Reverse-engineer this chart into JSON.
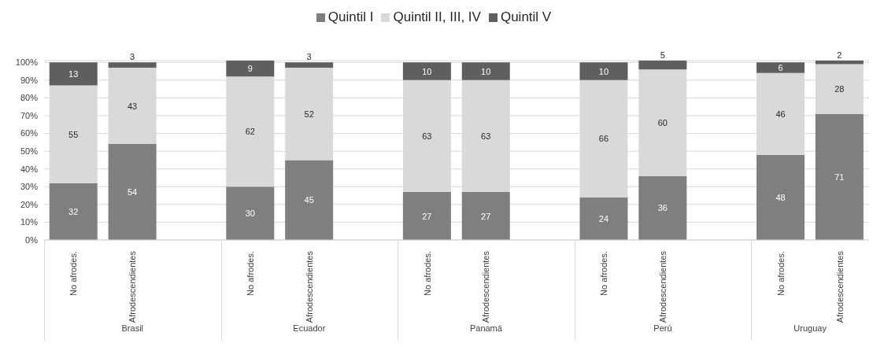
{
  "chart_data": {
    "type": "bar",
    "stacked": true,
    "categories": [
      "No afrodes.",
      "Afrodescendientes",
      null,
      "No afrodes.",
      "Afrodescendientes",
      null,
      "No afrodes.",
      "Afrodescendientes",
      null,
      "No afrodes.",
      "Afrodescendientes",
      null,
      "No afrodes.",
      "Afrodescendientes"
    ],
    "series": [
      {
        "name": "Quintil I",
        "color": "#7f7f7f",
        "values": [
          32,
          54,
          null,
          30,
          45,
          null,
          27,
          27,
          null,
          24,
          36,
          null,
          48,
          71
        ]
      },
      {
        "name": "Quintil II, III, IV",
        "color": "#d9d9d9",
        "values": [
          55,
          43,
          null,
          62,
          52,
          null,
          63,
          63,
          null,
          66,
          60,
          null,
          46,
          28
        ]
      },
      {
        "name": "Quintil V",
        "color": "#5f5f5f",
        "values": [
          13,
          3,
          null,
          9,
          3,
          null,
          10,
          10,
          null,
          10,
          5,
          null,
          6,
          2
        ]
      }
    ],
    "annotations": [
      "Brasil",
      "Ecuador",
      "Panamá",
      "Perú",
      "Uruguay"
    ],
    "ylim": [
      0,
      101
    ],
    "yticks": [
      {
        "value": 0,
        "label": "0%"
      },
      {
        "value": 10,
        "label": "10%"
      },
      {
        "value": 20,
        "label": "20%"
      },
      {
        "value": 30,
        "label": "30%"
      },
      {
        "value": 40,
        "label": "40%"
      },
      {
        "value": 50,
        "label": "50%"
      },
      {
        "value": 60,
        "label": "60%"
      },
      {
        "value": 70,
        "label": "70%"
      },
      {
        "value": 80,
        "label": "80%"
      },
      {
        "value": 90,
        "label": "90%"
      },
      {
        "value": 100,
        "label": "100%"
      }
    ],
    "grid": "y",
    "legend": "top",
    "data_labels": true
  }
}
